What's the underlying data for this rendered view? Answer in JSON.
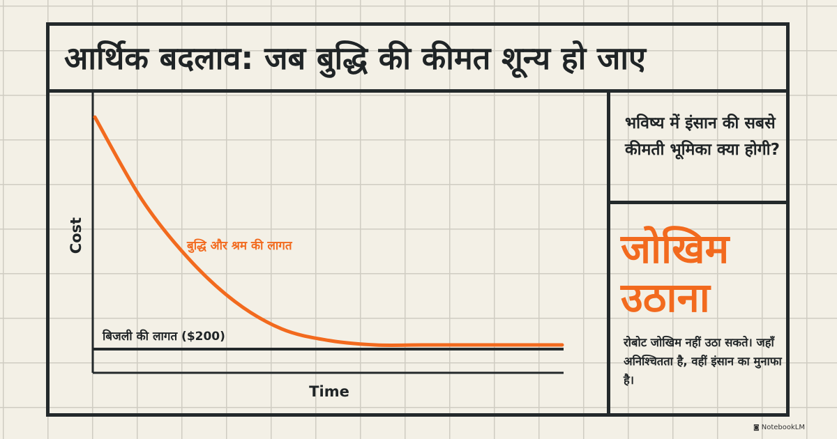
{
  "title": "आर्थिक बदलाव: जब बुद्धि की कीमत शून्य हो जाए",
  "side_panel": {
    "question": "भविष्य में इंसान की सबसे कीमती भूमिका क्या होगी?",
    "answer": "जोखिम उठाना",
    "description": "रोबोट जोखिम नहीं उठा सकते। जहाँ अनिश्चितता है, वहीं इंसान का मुनाफा है।"
  },
  "chart_data": {
    "type": "line",
    "xlabel": "Time",
    "ylabel": "Cost",
    "series": [
      {
        "name": "बुद्धि और श्रम की लागत",
        "color": "#f26a1e",
        "shape": "exponential decay to the electricity-cost floor",
        "x": [
          0,
          0.1,
          0.2,
          0.3,
          0.4,
          0.5,
          0.6,
          0.7,
          0.8,
          0.9,
          1.0
        ],
        "values": [
          1.0,
          0.64,
          0.38,
          0.19,
          0.07,
          0.02,
          0.0,
          0.0,
          0.0,
          0.0,
          0.0
        ]
      }
    ],
    "reference_line": {
      "label": "बिजली की लागत ($200)",
      "color": "#1f2426"
    }
  },
  "watermark": "NotebookLM"
}
